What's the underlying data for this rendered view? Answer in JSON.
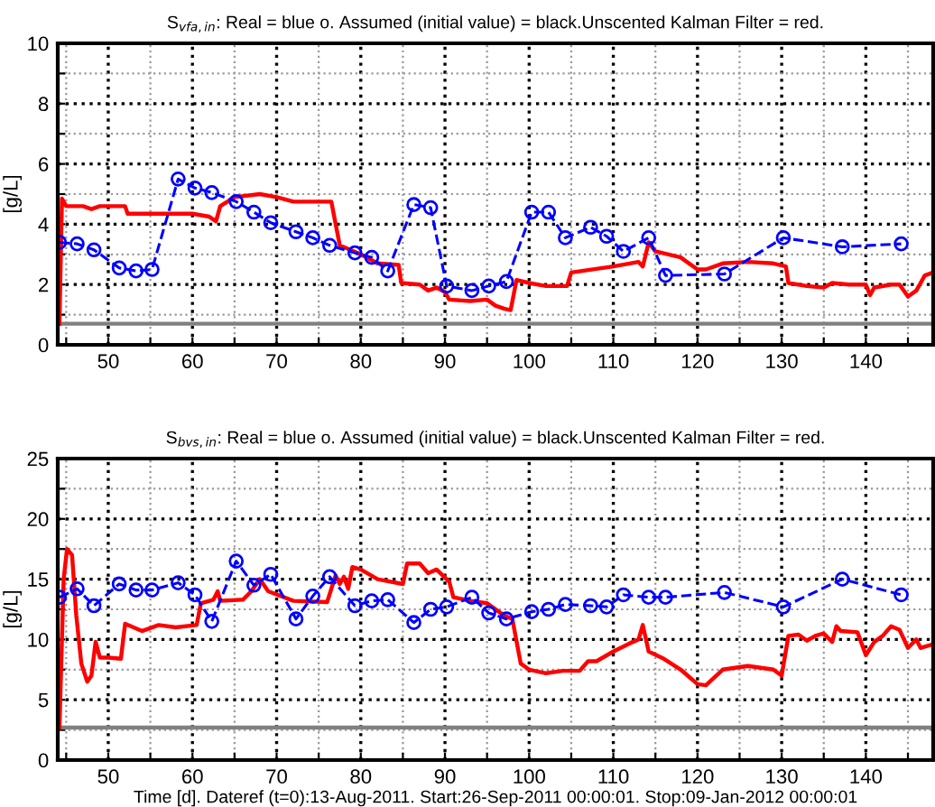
{
  "chart_data": [
    {
      "type": "line",
      "title": "S$_{vfa,in}$: Real = blue o. Assumed (initial value) = black.Unscented Kalman Filter = red.",
      "ylabel": "[g/L]",
      "xlim": [
        44,
        148
      ],
      "ylim": [
        0,
        10
      ],
      "xticks": [
        {
          "value": 45,
          "label": null
        },
        50,
        {
          "value": 55,
          "label": null
        },
        60,
        {
          "value": 65,
          "label": null
        },
        70,
        {
          "value": 75,
          "label": null
        },
        80,
        {
          "value": 85,
          "label": null
        },
        90,
        {
          "value": 95,
          "label": null
        },
        100,
        {
          "value": 105,
          "label": null
        },
        110,
        {
          "value": 115,
          "label": null
        },
        120,
        {
          "value": 125,
          "label": null
        },
        130,
        {
          "value": 135,
          "label": null
        },
        140,
        {
          "value": 145,
          "label": null
        }
      ],
      "yticks": [
        0,
        {
          "value": 1,
          "label": null
        },
        2,
        {
          "value": 3,
          "label": null
        },
        4,
        {
          "value": 5,
          "label": null
        },
        6,
        {
          "value": 7,
          "label": null
        },
        8,
        {
          "value": 9,
          "label": null
        },
        10
      ],
      "grid": true,
      "series": [
        {
          "color": "#808080",
          "line_style": "solid",
          "marker": "none",
          "x": [
            44,
            148
          ],
          "values": [
            0.7,
            0.7
          ]
        },
        {
          "color": "#ff0000",
          "line_style": "solid",
          "marker": "none",
          "x": [
            44.2,
            44.5,
            45,
            47,
            48,
            49,
            52,
            52.3,
            60,
            62,
            62.8,
            63.3,
            65,
            68,
            70,
            72,
            76.5,
            77.5,
            80,
            82,
            84.5,
            84.8,
            87,
            88,
            89,
            90,
            90.5,
            93,
            95,
            96,
            97,
            97.8,
            98.5,
            100,
            102,
            104.5,
            105,
            110,
            113,
            113.5,
            114.2,
            115,
            118,
            120,
            121,
            123,
            126,
            129,
            130.5,
            130.8,
            133,
            135,
            136,
            138,
            140,
            140.5,
            141,
            143,
            144,
            145,
            146,
            147,
            148
          ],
          "values": [
            0.7,
            4.85,
            4.6,
            4.6,
            4.5,
            4.6,
            4.6,
            4.35,
            4.35,
            4.25,
            4.1,
            4.6,
            4.9,
            5.0,
            4.9,
            4.75,
            4.75,
            3.3,
            3.0,
            2.7,
            2.65,
            2.05,
            2.0,
            1.8,
            1.9,
            1.75,
            1.5,
            1.45,
            1.5,
            1.3,
            1.2,
            1.15,
            2.15,
            2.05,
            1.95,
            1.95,
            2.4,
            2.6,
            2.75,
            2.6,
            3.4,
            3.1,
            2.9,
            2.5,
            2.5,
            2.7,
            2.75,
            2.7,
            2.6,
            2.05,
            1.95,
            1.9,
            2.05,
            2.0,
            2.0,
            1.65,
            1.9,
            2.0,
            2.0,
            1.6,
            1.8,
            2.3,
            2.4
          ]
        },
        {
          "color": "#0000ff",
          "line_style": "dashed",
          "marker": "circle",
          "x": [
            44.2,
            46.3,
            48.3,
            51.3,
            53.3,
            55.2,
            58.3,
            60.3,
            62.3,
            65.2,
            67.3,
            69.3,
            72.3,
            74.3,
            76.3,
            79.3,
            81.3,
            83.2,
            86.3,
            88.3,
            90.2,
            93.2,
            95.2,
            97.3,
            100.3,
            102.3,
            104.3,
            107.3,
            109.2,
            111.2,
            114.2,
            116.2,
            123.2,
            130.2,
            137.2,
            144.2
          ],
          "values": [
            3.4,
            3.35,
            3.15,
            2.55,
            2.45,
            2.5,
            5.5,
            5.2,
            5.05,
            4.75,
            4.4,
            4.05,
            3.75,
            3.55,
            3.3,
            3.05,
            2.9,
            2.45,
            4.65,
            4.55,
            1.95,
            1.8,
            1.95,
            2.1,
            4.4,
            4.4,
            3.55,
            3.9,
            3.6,
            3.1,
            3.55,
            2.3,
            2.35,
            3.55,
            3.25,
            3.35
          ]
        }
      ]
    },
    {
      "type": "line",
      "title": "S$_{bvs,in}$: Real = blue o. Assumed (initial value) = black.Unscented Kalman Filter = red.",
      "ylabel": "[g/L]",
      "xlabel": "Time [d]. Dateref (t=0):13-Aug-2011. Start:26-Sep-2011 00:00:01. Stop:09-Jan-2012 00:00:01",
      "xlim": [
        44,
        148
      ],
      "ylim": [
        0,
        25
      ],
      "xticks": [
        {
          "value": 45,
          "label": null
        },
        50,
        {
          "value": 55,
          "label": null
        },
        60,
        {
          "value": 65,
          "label": null
        },
        70,
        {
          "value": 75,
          "label": null
        },
        80,
        {
          "value": 85,
          "label": null
        },
        90,
        {
          "value": 95,
          "label": null
        },
        100,
        {
          "value": 105,
          "label": null
        },
        110,
        {
          "value": 115,
          "label": null
        },
        120,
        {
          "value": 125,
          "label": null
        },
        130,
        {
          "value": 135,
          "label": null
        },
        140,
        {
          "value": 145,
          "label": null
        }
      ],
      "yticks": [
        0,
        {
          "value": 2.5,
          "label": null
        },
        5,
        {
          "value": 7.5,
          "label": null
        },
        10,
        {
          "value": 12.5,
          "label": null
        },
        15,
        {
          "value": 17.5,
          "label": null
        },
        20,
        {
          "value": 22.5,
          "label": null
        },
        25
      ],
      "grid": true,
      "series": [
        {
          "color": "#808080",
          "line_style": "solid",
          "marker": "none",
          "x": [
            44,
            148
          ],
          "values": [
            2.7,
            2.7
          ]
        },
        {
          "color": "#ff0000",
          "line_style": "solid",
          "marker": "none",
          "x": [
            44.2,
            44.7,
            45.1,
            45.7,
            46.2,
            46.8,
            47.5,
            48,
            48.5,
            49,
            50,
            51.5,
            52,
            54,
            56,
            58,
            60.5,
            61,
            62.5,
            63,
            63.3,
            66,
            67,
            68,
            69,
            72,
            76,
            77,
            77.5,
            78,
            78.5,
            79,
            80,
            82,
            85,
            85.5,
            87,
            88,
            89,
            90.5,
            91,
            93,
            95,
            97,
            98,
            99,
            100,
            102,
            104,
            106,
            107,
            108,
            110,
            112,
            113,
            113.5,
            114.2,
            116,
            118,
            120,
            121,
            123,
            126,
            129,
            130,
            130.8,
            132,
            133,
            134,
            135,
            136,
            136.5,
            137,
            139,
            140,
            141,
            142,
            143,
            144,
            145,
            146,
            146.5,
            147,
            148
          ],
          "values": [
            2.7,
            15,
            17.5,
            17.0,
            12,
            8,
            6.5,
            7.0,
            9.8,
            8.5,
            8.5,
            8.4,
            11.3,
            10.7,
            11.2,
            11.0,
            11.2,
            13.0,
            13.3,
            14.0,
            13.2,
            13.3,
            14.0,
            15.0,
            14.0,
            13.2,
            13.1,
            15.3,
            14.6,
            15.2,
            14.2,
            16.0,
            15.8,
            15.0,
            14.6,
            16.3,
            16.3,
            15.5,
            15.8,
            14.8,
            13.5,
            13.2,
            13.0,
            12.0,
            11.7,
            8.0,
            7.5,
            7.2,
            7.4,
            7.4,
            8.2,
            8.2,
            9.0,
            9.7,
            10,
            11.2,
            9.0,
            8.4,
            7.5,
            6.3,
            6.2,
            7.5,
            7.8,
            7.5,
            7.0,
            10.3,
            10.4,
            9.9,
            10.3,
            10.5,
            9.8,
            11.1,
            10.7,
            10.6,
            8.7,
            9.8,
            10.3,
            11.1,
            10.8,
            9.3,
            10.0,
            9.3,
            9.4,
            9.6
          ]
        },
        {
          "color": "#0000ff",
          "line_style": "dashed",
          "marker": "circle",
          "x": [
            44.2,
            46.3,
            48.3,
            51.3,
            53.3,
            55.2,
            58.3,
            60.3,
            62.3,
            65.2,
            67.3,
            69.3,
            72.3,
            74.3,
            76.3,
            79.3,
            81.3,
            83.2,
            86.3,
            88.3,
            90.2,
            93.2,
            95.2,
            97.3,
            100.3,
            102.3,
            104.3,
            107.3,
            109.2,
            111.2,
            114.2,
            116.2,
            123.2,
            130.2,
            137.2,
            144.2
          ],
          "values": [
            13.5,
            14.2,
            12.8,
            14.6,
            14.1,
            14.1,
            14.7,
            13.7,
            11.5,
            16.5,
            14.5,
            15.4,
            11.7,
            13.6,
            15.2,
            12.8,
            13.2,
            13.3,
            11.4,
            12.5,
            12.7,
            13.5,
            12.2,
            11.7,
            12.3,
            12.5,
            12.9,
            12.8,
            12.7,
            13.7,
            13.5,
            13.5,
            13.9,
            12.7,
            15.0,
            13.7
          ]
        }
      ]
    }
  ]
}
